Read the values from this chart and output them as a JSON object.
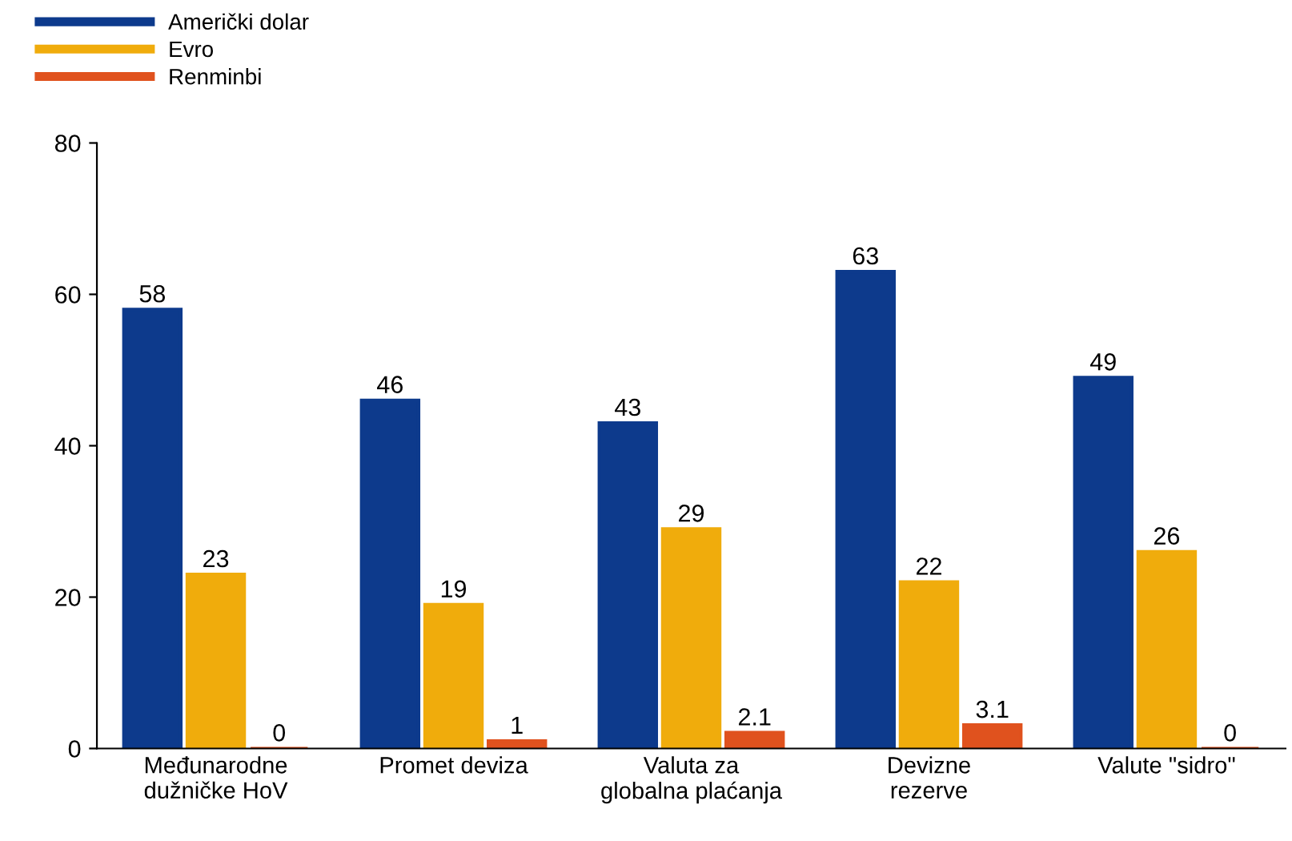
{
  "chart_data": {
    "type": "bar",
    "categories": [
      "Međunarodne\ndužničke HoV",
      "Promet deviza",
      "Valuta za\nglobalna plaćanja",
      "Devizne\nrezerve",
      "Valute \"sidro\""
    ],
    "series": [
      {
        "name": "Američki dolar",
        "color": "#0d3a8c",
        "values": [
          58,
          46,
          43,
          63,
          49
        ]
      },
      {
        "name": "Evro",
        "color": "#f0ac0c",
        "values": [
          23,
          19,
          29,
          22,
          26
        ]
      },
      {
        "name": "Renminbi",
        "color": "#e0521e",
        "values": [
          0,
          1,
          2.1,
          3.1,
          0
        ]
      }
    ],
    "ylim": [
      0,
      80
    ],
    "yticks": [
      0,
      20,
      40,
      60,
      80
    ],
    "data_labels": true,
    "grid": false,
    "legend": "top left"
  }
}
